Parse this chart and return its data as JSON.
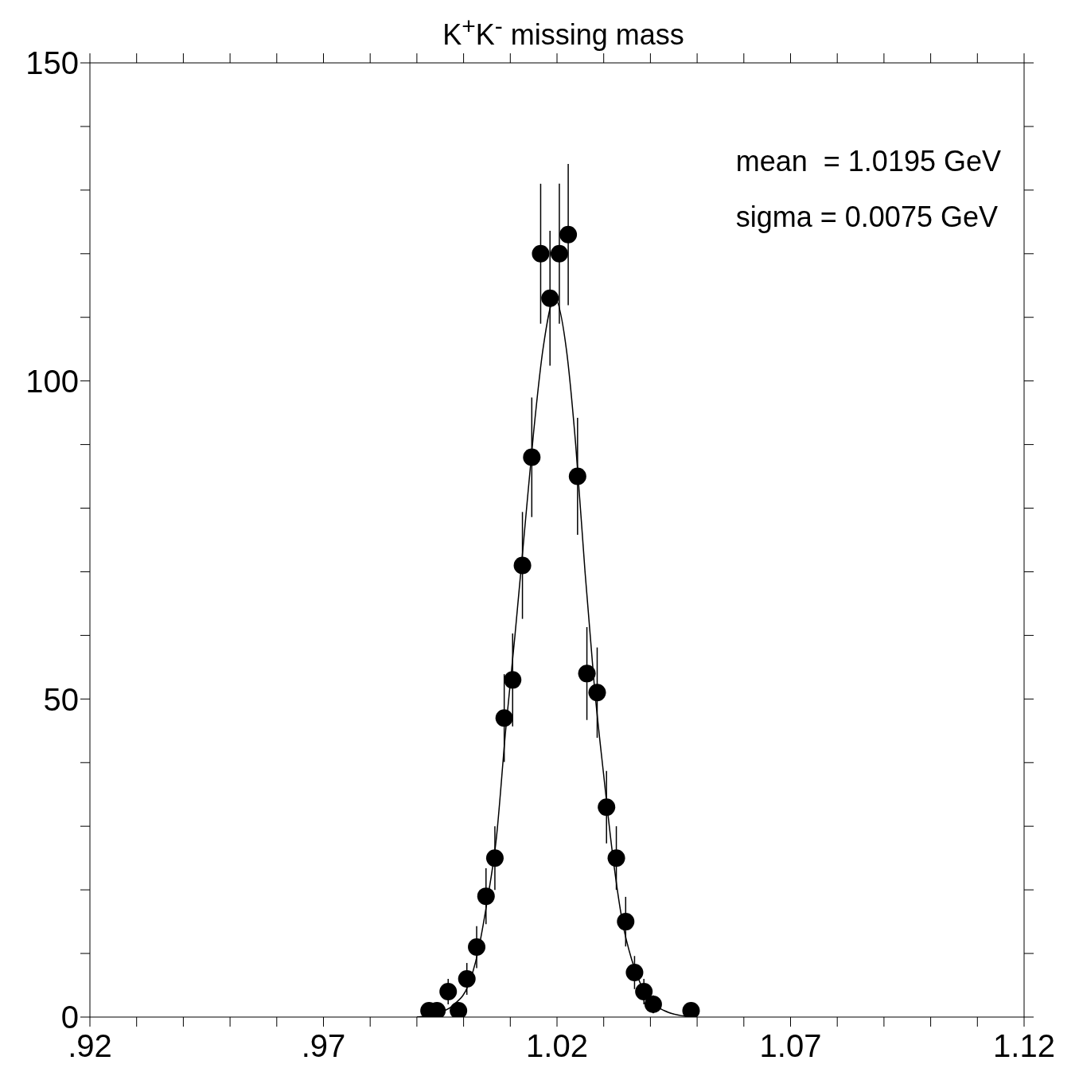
{
  "chart_data": {
    "type": "scatter",
    "title": "K$^{+}$K$^{-}$ missing mass",
    "annotations": [
      "mean  = 1.0195 GeV",
      "sigma = 0.0075 GeV"
    ],
    "series": [
      {
        "color": "#000000",
        "marker": "circle",
        "x": [
          0.9926,
          0.9943,
          0.9967,
          0.9989,
          1.0007,
          1.0028,
          1.0048,
          1.0067,
          1.0087,
          1.0105,
          1.0126,
          1.0146,
          1.0165,
          1.0185,
          1.0205,
          1.0224,
          1.0244,
          1.0264,
          1.0286,
          1.0306,
          1.0327,
          1.0347,
          1.0366,
          1.0386,
          1.0406,
          1.0487
        ],
        "values": [
          1,
          1,
          4,
          1,
          6,
          11,
          19,
          25,
          47,
          53,
          71,
          88,
          120,
          113,
          120,
          123,
          85,
          54,
          51,
          33,
          25,
          15,
          7,
          4,
          2,
          1
        ],
        "errors": [
          1,
          1,
          2,
          1,
          2.5,
          3.3,
          4.4,
          5,
          6.9,
          7.3,
          8.4,
          9.4,
          11,
          10.6,
          11,
          11.1,
          9.2,
          7.3,
          7.1,
          5.7,
          5,
          3.9,
          2.6,
          2,
          1.4,
          1
        ]
      },
      {
        "type": "line",
        "color": "#000000",
        "marker": "none",
        "line_style": "solid",
        "x": [
          0.99,
          0.994,
          0.998,
          1.001,
          1.003,
          1.005,
          1.007,
          1.009,
          1.011,
          1.013,
          1.015,
          1.017,
          1.0195,
          1.022,
          1.024,
          1.026,
          1.028,
          1.03,
          1.032,
          1.034,
          1.036,
          1.038,
          1.04,
          1.043,
          1.046,
          1.049
        ],
        "values": [
          0,
          0.5,
          2,
          5,
          10,
          18,
          28,
          45,
          60,
          76,
          92,
          105,
          113,
          105,
          90,
          70,
          52,
          38,
          25,
          15,
          9,
          5,
          2.5,
          1,
          0.3,
          0
        ]
      }
    ],
    "xlim": [
      0.92,
      1.12
    ],
    "xticks": [
      {
        "value": 0.92,
        "label": ".92"
      },
      {
        "value": 0.93,
        "label": null
      },
      {
        "value": 0.94,
        "label": null
      },
      {
        "value": 0.95,
        "label": null
      },
      {
        "value": 0.96,
        "label": null
      },
      {
        "value": 0.97,
        "label": ".97"
      },
      {
        "value": 0.98,
        "label": null
      },
      {
        "value": 0.99,
        "label": null
      },
      {
        "value": 1.0,
        "label": null
      },
      {
        "value": 1.01,
        "label": null
      },
      {
        "value": 1.02,
        "label": "1.02"
      },
      {
        "value": 1.03,
        "label": null
      },
      {
        "value": 1.04,
        "label": null
      },
      {
        "value": 1.05,
        "label": null
      },
      {
        "value": 1.06,
        "label": null
      },
      {
        "value": 1.07,
        "label": "1.07"
      },
      {
        "value": 1.08,
        "label": null
      },
      {
        "value": 1.09,
        "label": null
      },
      {
        "value": 1.1,
        "label": null
      },
      {
        "value": 1.11,
        "label": null
      },
      {
        "value": 1.12,
        "label": "1.12"
      }
    ],
    "ylim": [
      0,
      150
    ],
    "yticks": [
      0,
      {
        "value": 10,
        "label": null
      },
      {
        "value": 20,
        "label": null
      },
      {
        "value": 30,
        "label": null
      },
      {
        "value": 40,
        "label": null
      },
      50,
      {
        "value": 60,
        "label": null
      },
      {
        "value": 70,
        "label": null
      },
      {
        "value": 80,
        "label": null
      },
      {
        "value": 90,
        "label": null
      },
      100,
      {
        "value": 110,
        "label": null
      },
      {
        "value": 120,
        "label": null
      },
      {
        "value": 130,
        "label": null
      },
      {
        "value": 140,
        "label": null
      },
      150
    ],
    "grid": false,
    "legend": false
  }
}
